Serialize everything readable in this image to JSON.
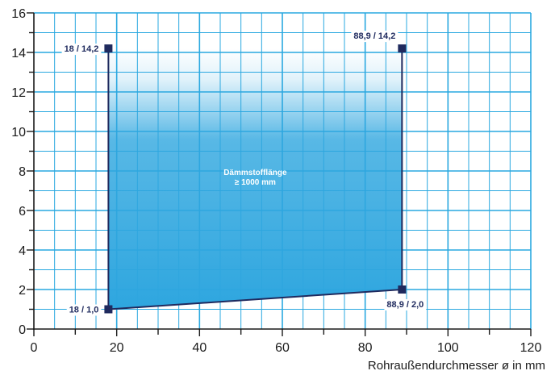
{
  "chart_data": {
    "type": "area",
    "title": "",
    "xlabel": "Rohraußendurchmesser ø in mm",
    "ylabel": "",
    "xlim": [
      0,
      120
    ],
    "ylim": [
      0,
      16
    ],
    "x_ticks": [
      0,
      20,
      40,
      60,
      80,
      100,
      120
    ],
    "y_ticks": [
      0,
      2,
      4,
      6,
      8,
      10,
      12,
      14,
      16
    ],
    "grid": true,
    "region": {
      "label_lines": [
        "Dämmstofflänge",
        "≥ 1000 mm"
      ],
      "polygon": [
        {
          "x": 18,
          "y": 1.0
        },
        {
          "x": 88.9,
          "y": 2.0
        },
        {
          "x": 88.9,
          "y": 14.2
        },
        {
          "x": 18,
          "y": 14.2
        }
      ]
    },
    "corner_points": [
      {
        "x": 18,
        "y": 14.2,
        "label": "18 / 14,2",
        "label_side": "left"
      },
      {
        "x": 88.9,
        "y": 14.2,
        "label": "88,9 / 14,2",
        "label_side": "left-above"
      },
      {
        "x": 18,
        "y": 1.0,
        "label": "18 / 1,0",
        "label_side": "left"
      },
      {
        "x": 88.9,
        "y": 2.0,
        "label": "88,9 / 2,0",
        "label_side": "below"
      }
    ],
    "colors": {
      "grid_major": "#29a8e0",
      "grid_minor": "#29a8e0",
      "frame": "#29a8e0",
      "area_fill": "#2ea6df",
      "boundary": "#1f2a5e",
      "marker": "#1f2a5e"
    }
  }
}
